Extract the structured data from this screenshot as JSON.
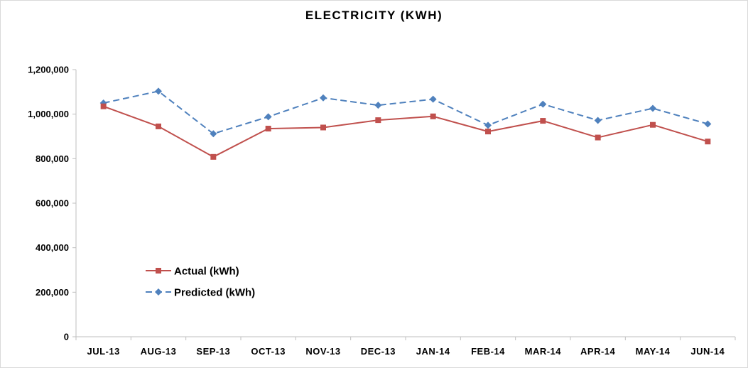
{
  "chart_data": {
    "type": "line",
    "title": "ELECTRICITY (KWH)",
    "xlabel": "",
    "ylabel": "",
    "categories": [
      "JUL-13",
      "AUG-13",
      "SEP-13",
      "OCT-13",
      "NOV-13",
      "DEC-13",
      "JAN-14",
      "FEB-14",
      "MAR-14",
      "APR-14",
      "MAY-14",
      "JUN-14"
    ],
    "ylim": [
      0,
      1200000
    ],
    "yticks": [
      0,
      200000,
      400000,
      600000,
      800000,
      1000000,
      1200000
    ],
    "ytick_labels": [
      "0",
      "200,000",
      "400,000",
      "600,000",
      "800,000",
      "1,000,000",
      "1,200,000"
    ],
    "grid": false,
    "legend_position": "lower-left",
    "series": [
      {
        "name": "Actual (kWh)",
        "color": "#C0504D",
        "marker": "square",
        "line_style": "solid",
        "values": [
          1035000,
          945000,
          808000,
          935000,
          940000,
          973000,
          990000,
          922000,
          970000,
          895000,
          952000,
          877000
        ]
      },
      {
        "name": "Predicted (kWh)",
        "color": "#4F81BD",
        "marker": "diamond",
        "line_style": "dashed",
        "values": [
          1050000,
          1103000,
          912000,
          988000,
          1073000,
          1040000,
          1067000,
          950000,
          1045000,
          972000,
          1026000,
          956000
        ]
      }
    ]
  }
}
